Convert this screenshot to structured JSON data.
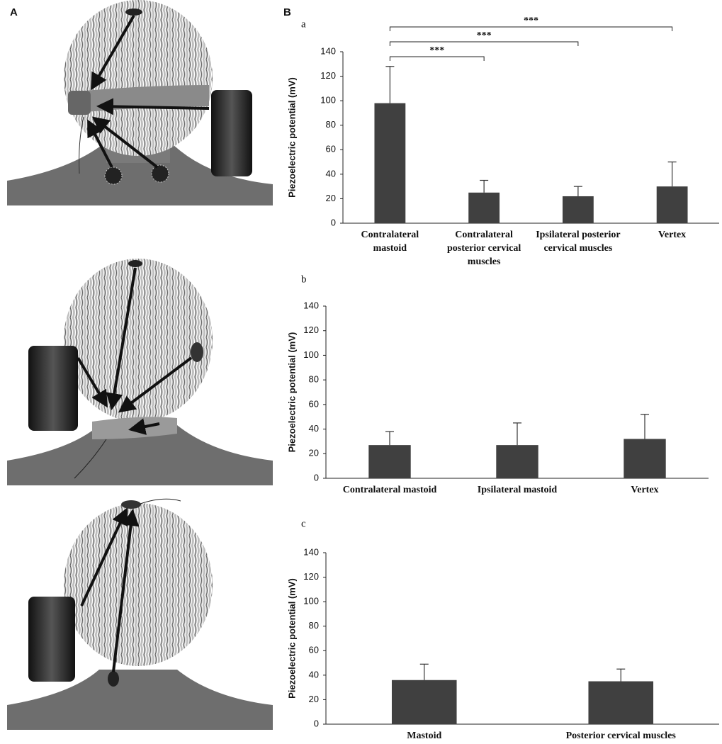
{
  "panel_labels": [
    "A",
    "B"
  ],
  "chart_data": [
    {
      "type": "bar",
      "label": "a",
      "ylabel": "Piezoelectric potential (mV)",
      "categories": [
        "Contralateral mastoid",
        "Contralateral posterior cervical muscles",
        "Ipsilateral posterior cervical muscles",
        "Vertex"
      ],
      "values": [
        98,
        25,
        22,
        30
      ],
      "errors": [
        30,
        10,
        8,
        20
      ],
      "color": "#404040",
      "ylim": [
        0,
        140
      ],
      "yticks": [
        0,
        20,
        40,
        60,
        80,
        100,
        120,
        140
      ],
      "significance": [
        {
          "categories": [
            "Contralateral mastoid",
            "Contralateral posterior cervical muscles"
          ],
          "label": "***"
        },
        {
          "categories": [
            "Contralateral mastoid",
            "Ipsilateral posterior cervical muscles"
          ],
          "label": "***"
        },
        {
          "categories": [
            "Contralateral mastoid",
            "Vertex"
          ],
          "label": "***"
        }
      ]
    },
    {
      "type": "bar",
      "label": "b",
      "ylabel": "Piezoelectric potential (mV)",
      "categories": [
        "Contralateral mastoid",
        "Ipsilateral mastoid",
        "Vertex"
      ],
      "values": [
        27,
        27,
        32
      ],
      "errors": [
        11,
        18,
        20
      ],
      "color": "#404040",
      "ylim": [
        0,
        140
      ],
      "yticks": [
        0,
        20,
        40,
        60,
        80,
        100,
        120,
        140
      ]
    },
    {
      "type": "bar",
      "label": "c",
      "ylabel": "Piezoelectric potential (mV)",
      "categories": [
        "Mastoid",
        "Posterior cervical muscles"
      ],
      "values": [
        36,
        35
      ],
      "errors": [
        13,
        10
      ],
      "color": "#404040",
      "ylim": [
        0,
        140
      ],
      "yticks": [
        0,
        20,
        40,
        60,
        80,
        100,
        120,
        140
      ]
    }
  ]
}
